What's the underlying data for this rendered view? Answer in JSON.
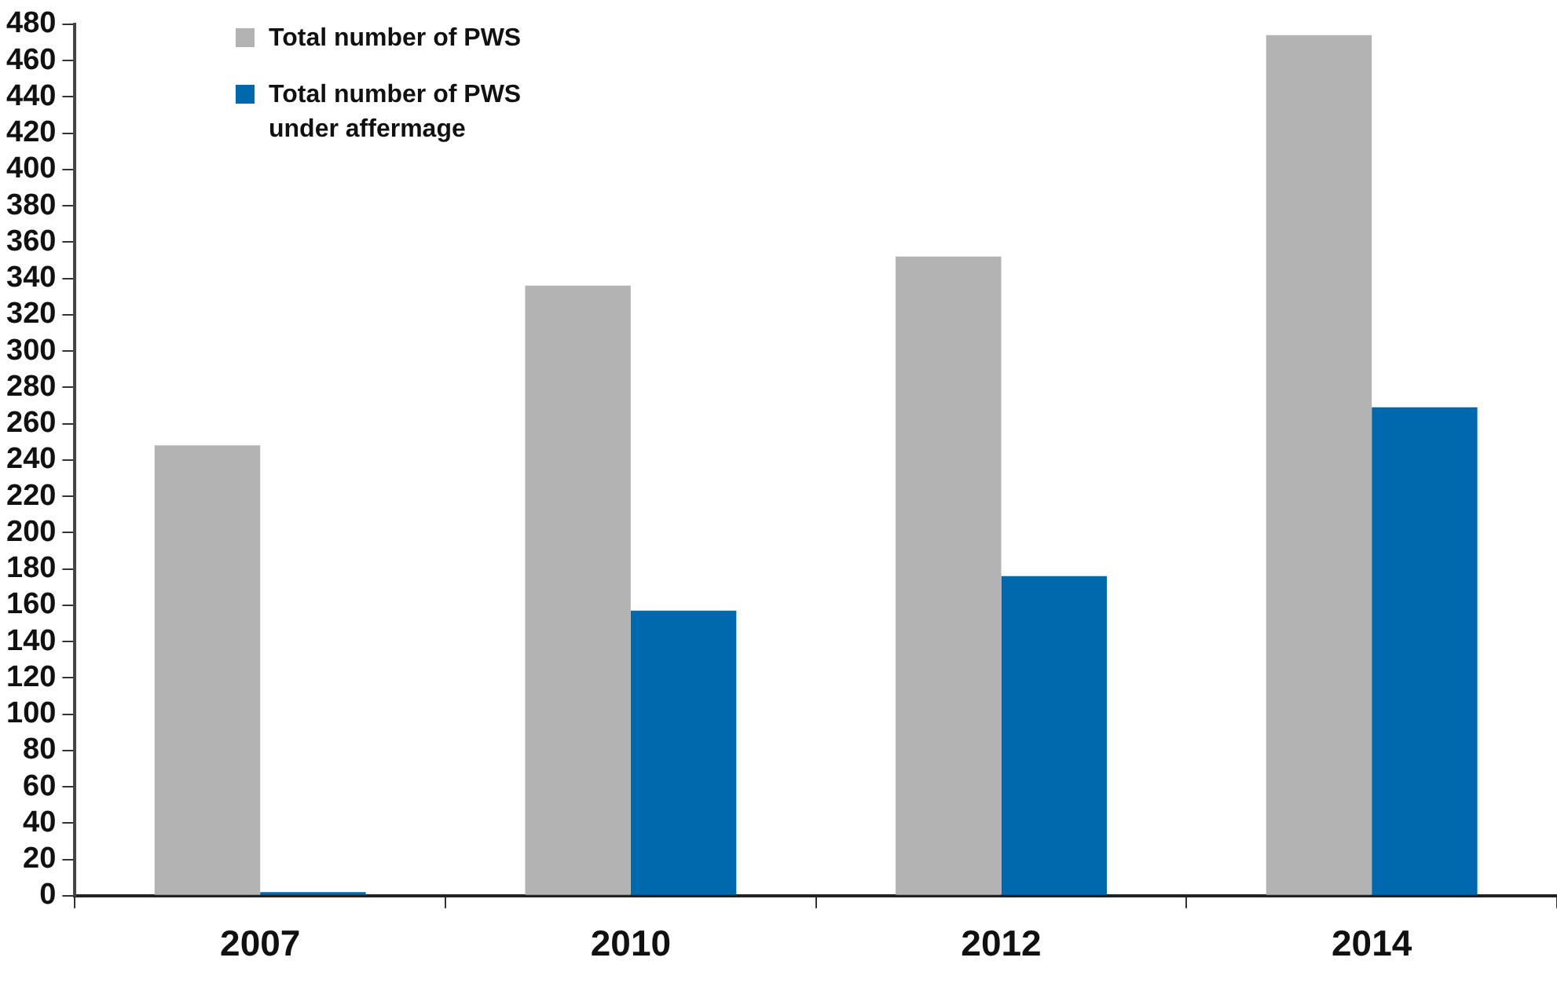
{
  "chart_data": {
    "type": "bar",
    "categories": [
      "2007",
      "2010",
      "2012",
      "2014"
    ],
    "series": [
      {
        "name": "Total number of PWS",
        "color": "#b3b3b3",
        "values": [
          248,
          336,
          352,
          474
        ]
      },
      {
        "name": "Total number of PWS under affermage",
        "color": "#0068ad",
        "values": [
          2,
          157,
          176,
          269
        ]
      }
    ],
    "ylim": [
      0,
      480
    ],
    "yticks": [
      0,
      20,
      40,
      60,
      80,
      100,
      120,
      140,
      160,
      180,
      200,
      220,
      240,
      260,
      280,
      300,
      320,
      340,
      360,
      380,
      400,
      420,
      440,
      460,
      480
    ],
    "legend": "top left"
  }
}
